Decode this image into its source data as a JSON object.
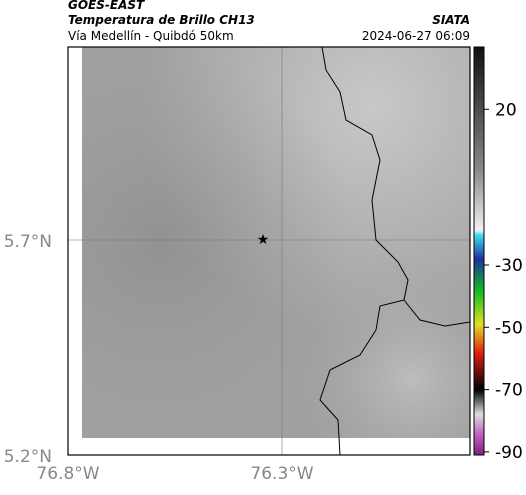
{
  "header": {
    "title": "GOES-EAST",
    "subtitle": "Temperatura de Brillo CH13",
    "location": "Vía Medellín - Quibdó 50km",
    "source": "SIATA",
    "datetime": "2024-06-27 06:09"
  },
  "map": {
    "x_ticks": [
      "76.8°W",
      "76.3°W"
    ],
    "y_ticks": [
      "5.7°N",
      "5.2°N"
    ]
  },
  "colorbar": {
    "range": [
      -91,
      40
    ],
    "ticks": [
      20,
      -30,
      -50,
      -70,
      -90
    ]
  }
}
